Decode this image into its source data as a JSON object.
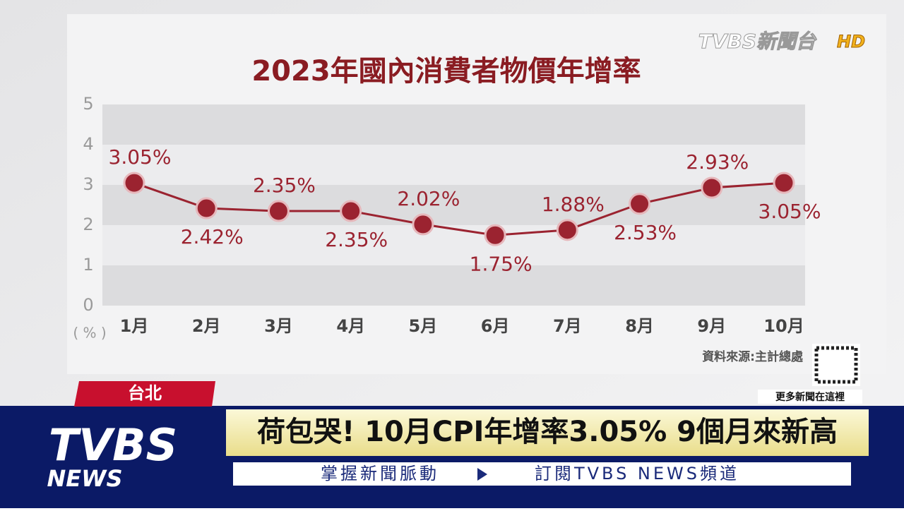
{
  "chart_data": {
    "type": "line",
    "title": "2023年國內消費者物價年增率",
    "y_unit_label": "( % )",
    "categories": [
      "1月",
      "2月",
      "3月",
      "4月",
      "5月",
      "6月",
      "7月",
      "8月",
      "9月",
      "10月"
    ],
    "values": [
      3.05,
      2.42,
      2.35,
      2.35,
      2.02,
      1.75,
      1.88,
      2.53,
      2.93,
      3.05
    ],
    "value_labels": [
      "3.05%",
      "2.42%",
      "2.35%",
      "2.35%",
      "2.02%",
      "1.75%",
      "1.88%",
      "2.53%",
      "2.93%",
      "3.05%"
    ],
    "color": "#9b2330",
    "ylim": [
      0,
      5
    ],
    "yticks": [
      0,
      1,
      2,
      3,
      4,
      5
    ],
    "grid": true,
    "source": "資料來源:主計總處"
  },
  "channel_logo": {
    "name": "TVBS新聞台",
    "badge": "HD"
  },
  "location": "台北",
  "headline": "荷包哭! 10月CPI年增率3.05% 9個月來新高",
  "ticker": [
    "掌握新聞脈動",
    "訂閱TVBS NEWS頻道"
  ],
  "qr_caption": "更多新聞在這裡",
  "news_logo": {
    "top": "TVBS",
    "bottom": "NEWS"
  }
}
